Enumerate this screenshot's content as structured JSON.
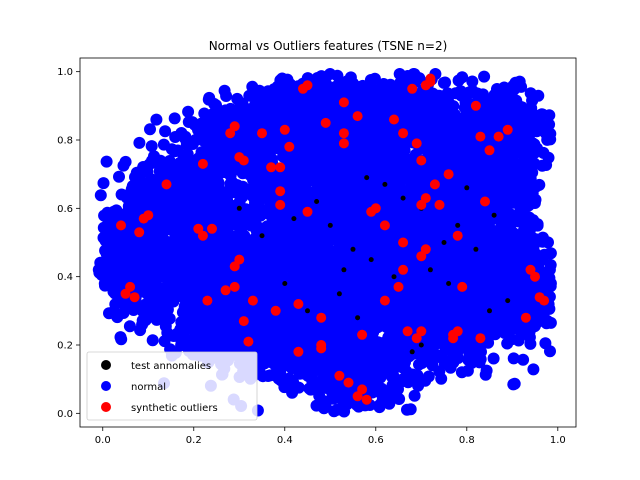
{
  "chart_data": {
    "type": "scatter",
    "title": "Normal vs Outliers features (TSNE n=2)",
    "xlabel": "",
    "ylabel": "",
    "xlim": [
      -0.05,
      1.04
    ],
    "ylim": [
      -0.04,
      1.04
    ],
    "xticks": [
      "0.0",
      "0.2",
      "0.4",
      "0.6",
      "0.8",
      "1.0"
    ],
    "yticks": [
      "0.0",
      "0.2",
      "0.4",
      "0.6",
      "0.8",
      "1.0"
    ],
    "grid": false,
    "legend_position": "lower-left",
    "series": [
      {
        "name": "test annomalies",
        "color": "#000000",
        "points": [
          [
            0.58,
            0.69
          ],
          [
            0.62,
            0.67
          ],
          [
            0.66,
            0.63
          ],
          [
            0.7,
            0.6
          ],
          [
            0.59,
            0.45
          ],
          [
            0.55,
            0.48
          ],
          [
            0.53,
            0.42
          ],
          [
            0.64,
            0.4
          ],
          [
            0.68,
            0.18
          ],
          [
            0.7,
            0.2
          ],
          [
            0.45,
            0.3
          ],
          [
            0.4,
            0.38
          ],
          [
            0.35,
            0.52
          ],
          [
            0.3,
            0.6
          ],
          [
            0.75,
            0.5
          ],
          [
            0.78,
            0.55
          ],
          [
            0.82,
            0.48
          ],
          [
            0.86,
            0.58
          ],
          [
            0.89,
            0.33
          ],
          [
            0.85,
            0.3
          ],
          [
            0.5,
            0.55
          ],
          [
            0.47,
            0.62
          ],
          [
            0.42,
            0.57
          ],
          [
            0.52,
            0.35
          ],
          [
            0.56,
            0.28
          ],
          [
            0.62,
            0.55
          ],
          [
            0.66,
            0.5
          ],
          [
            0.72,
            0.42
          ],
          [
            0.76,
            0.38
          ],
          [
            0.8,
            0.66
          ]
        ]
      },
      {
        "name": "normal",
        "color": "#0000ff",
        "points": []
      },
      {
        "name": "synthetic outliers",
        "color": "#ff0000",
        "points": [
          [
            0.04,
            0.55
          ],
          [
            0.05,
            0.35
          ],
          [
            0.06,
            0.37
          ],
          [
            0.07,
            0.34
          ],
          [
            0.08,
            0.53
          ],
          [
            0.09,
            0.57
          ],
          [
            0.1,
            0.58
          ],
          [
            0.14,
            0.67
          ],
          [
            0.21,
            0.54
          ],
          [
            0.22,
            0.52
          ],
          [
            0.22,
            0.73
          ],
          [
            0.23,
            0.33
          ],
          [
            0.24,
            0.54
          ],
          [
            0.27,
            0.36
          ],
          [
            0.28,
            0.82
          ],
          [
            0.29,
            0.84
          ],
          [
            0.29,
            0.43
          ],
          [
            0.29,
            0.37
          ],
          [
            0.3,
            0.45
          ],
          [
            0.3,
            0.75
          ],
          [
            0.31,
            0.27
          ],
          [
            0.31,
            0.74
          ],
          [
            0.32,
            0.21
          ],
          [
            0.33,
            0.33
          ],
          [
            0.35,
            0.82
          ],
          [
            0.37,
            0.72
          ],
          [
            0.38,
            0.3
          ],
          [
            0.39,
            0.65
          ],
          [
            0.39,
            0.72
          ],
          [
            0.39,
            0.61
          ],
          [
            0.4,
            0.83
          ],
          [
            0.41,
            0.78
          ],
          [
            0.43,
            0.32
          ],
          [
            0.43,
            0.18
          ],
          [
            0.44,
            0.95
          ],
          [
            0.45,
            0.96
          ],
          [
            0.45,
            0.59
          ],
          [
            0.48,
            0.28
          ],
          [
            0.48,
            0.2
          ],
          [
            0.48,
            0.19
          ],
          [
            0.49,
            0.85
          ],
          [
            0.52,
            0.11
          ],
          [
            0.53,
            0.91
          ],
          [
            0.53,
            0.82
          ],
          [
            0.53,
            0.79
          ],
          [
            0.54,
            0.09
          ],
          [
            0.56,
            0.87
          ],
          [
            0.56,
            0.05
          ],
          [
            0.57,
            0.07
          ],
          [
            0.57,
            0.23
          ],
          [
            0.58,
            0.04
          ],
          [
            0.59,
            0.59
          ],
          [
            0.6,
            0.6
          ],
          [
            0.62,
            0.33
          ],
          [
            0.62,
            0.55
          ],
          [
            0.64,
            0.86
          ],
          [
            0.65,
            0.37
          ],
          [
            0.66,
            0.82
          ],
          [
            0.66,
            0.5
          ],
          [
            0.66,
            0.42
          ],
          [
            0.67,
            0.24
          ],
          [
            0.68,
            0.95
          ],
          [
            0.69,
            0.22
          ],
          [
            0.69,
            0.79
          ],
          [
            0.7,
            0.74
          ],
          [
            0.7,
            0.24
          ],
          [
            0.7,
            0.61
          ],
          [
            0.7,
            0.46
          ],
          [
            0.71,
            0.96
          ],
          [
            0.71,
            0.63
          ],
          [
            0.71,
            0.48
          ],
          [
            0.72,
            0.98
          ],
          [
            0.72,
            0.97
          ],
          [
            0.73,
            0.67
          ],
          [
            0.74,
            0.61
          ],
          [
            0.76,
            0.7
          ],
          [
            0.77,
            0.23
          ],
          [
            0.77,
            0.22
          ],
          [
            0.78,
            0.24
          ],
          [
            0.78,
            0.52
          ],
          [
            0.79,
            0.37
          ],
          [
            0.82,
            0.9
          ],
          [
            0.83,
            0.81
          ],
          [
            0.83,
            0.22
          ],
          [
            0.84,
            0.62
          ],
          [
            0.85,
            0.77
          ],
          [
            0.87,
            0.81
          ],
          [
            0.89,
            0.83
          ],
          [
            0.93,
            0.28
          ],
          [
            0.94,
            0.42
          ],
          [
            0.95,
            0.4
          ],
          [
            0.96,
            0.34
          ],
          [
            0.97,
            0.33
          ]
        ]
      }
    ]
  }
}
